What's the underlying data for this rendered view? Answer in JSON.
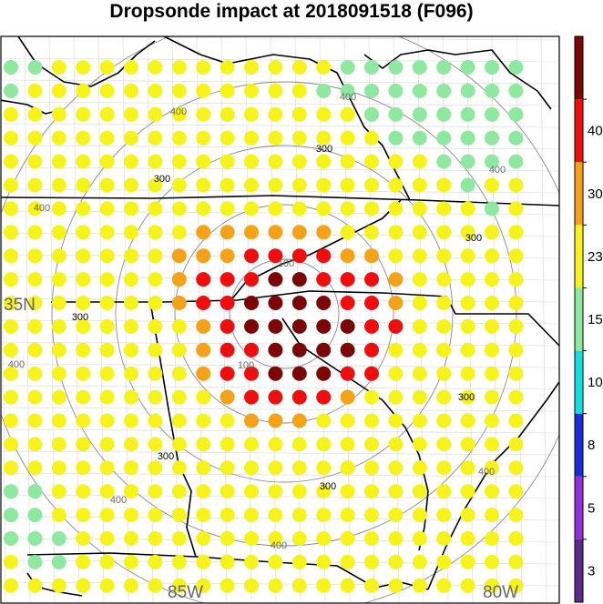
{
  "title": "Dropsonde impact at 2018091518 (F096)",
  "axis_labels": {
    "lat": "35N",
    "lon_west": "85W",
    "lon_east": "80W"
  },
  "contour_labels": {
    "c100": "100",
    "c300": "300",
    "c400": "400"
  },
  "colorbar": {
    "labels": [
      "3",
      "5",
      "8",
      "10",
      "15",
      "23",
      "30",
      "40"
    ],
    "colors": [
      "#5b2a8a",
      "#8f32d6",
      "#1c2dd8",
      "#16dcdc",
      "#8fe8a0",
      "#f6f21c",
      "#f4a21a",
      "#ee0e0e",
      "#7a0606"
    ]
  },
  "chart_data": {
    "type": "heatmap",
    "title": "Dropsonde impact at 2018091518 (F096)",
    "legend": "colorbar right",
    "bins": [
      0,
      3,
      5,
      8,
      10,
      15,
      23,
      30,
      40,
      50
    ],
    "grid_rows": [
      "GGYYYYYYYYYYYYGGGGGGGG",
      "GYYYYYYYYYYYYGGGGGGGGG",
      "YYYYYYYYYYYYYYYGGGGGGG",
      "YYYYYYYYYYYYYYYYGGGGGG",
      "YYYYYYYYYYYYYYYYYYGGGG",
      "YYYYYYYYYYYYYYYYYYYGYY",
      "YYYYYYYYYYYYYYYYYYYYGY",
      "YYYYYYYYOOOOOOYYYYYYYY",
      "YYYYYYYOOORRRROOYYYYYY",
      "YYYYYYYORRRDDRRROYYYYY",
      "YYYYYYYORRDDDDRROYYYYY",
      "YYYYYYYYORDDDDDRRYYYYY",
      "YYYYYYYYORRDDDDRYYYYYY",
      "YYYYYYYYORRDDDRRYYYYYY",
      "YYYYYYYYYORRRROYYYYYYY",
      "YYYYYYYYYYOOOYYYYYYYYY",
      "YYYYYYYYYYYYYYYYYYYYYY",
      "YYYYYYYYYYYYYYYYYYYYYY",
      "GGYYYYYYYYYYYYYYYYYYYY",
      "GGYYYYYYYYYYYYYYYYYYYY",
      "GGGYYYYYYYYYYYYYYYYYYY",
      "YGGYYYYYYYYYYYYYYYYYYY",
      "YYYYYYYYYYYYYYYYYYYYYY"
    ],
    "legend_codes": {
      "G": "10-15",
      "Y": "15-23",
      "O": "23-30",
      "R": "30-40",
      "D": "40-50"
    }
  }
}
